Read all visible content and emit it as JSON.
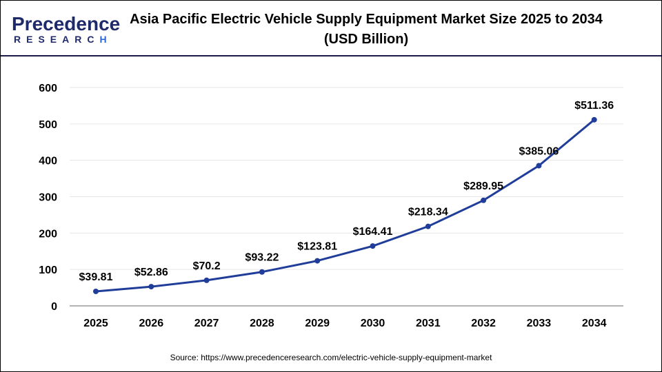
{
  "logo": {
    "line1": "Precedence",
    "line2": "RESEARCH"
  },
  "title": "Asia Pacific Electric Vehicle Supply Equipment Market Size 2025 to 2034 (USD Billion)",
  "source": "Source: https://www.precedenceresearch.com/electric-vehicle-supply-equipment-market",
  "chart_data": {
    "type": "line",
    "title": "Asia Pacific Electric Vehicle Supply Equipment Market Size 2025 to 2034 (USD Billion)",
    "categories": [
      "2025",
      "2026",
      "2027",
      "2028",
      "2029",
      "2030",
      "2031",
      "2032",
      "2033",
      "2034"
    ],
    "values": [
      39.81,
      52.86,
      70.2,
      93.22,
      123.81,
      164.41,
      218.34,
      289.95,
      385.06,
      511.36
    ],
    "labels": [
      "$39.81",
      "$52.86",
      "$70.2",
      "$93.22",
      "$123.81",
      "$164.41",
      "$218.34",
      "$289.95",
      "$385.06",
      "$511.36"
    ],
    "ylim": [
      0,
      600
    ],
    "yticks": [
      0,
      100,
      200,
      300,
      400,
      500,
      600
    ],
    "grid": true,
    "color": "#1f3d99"
  }
}
